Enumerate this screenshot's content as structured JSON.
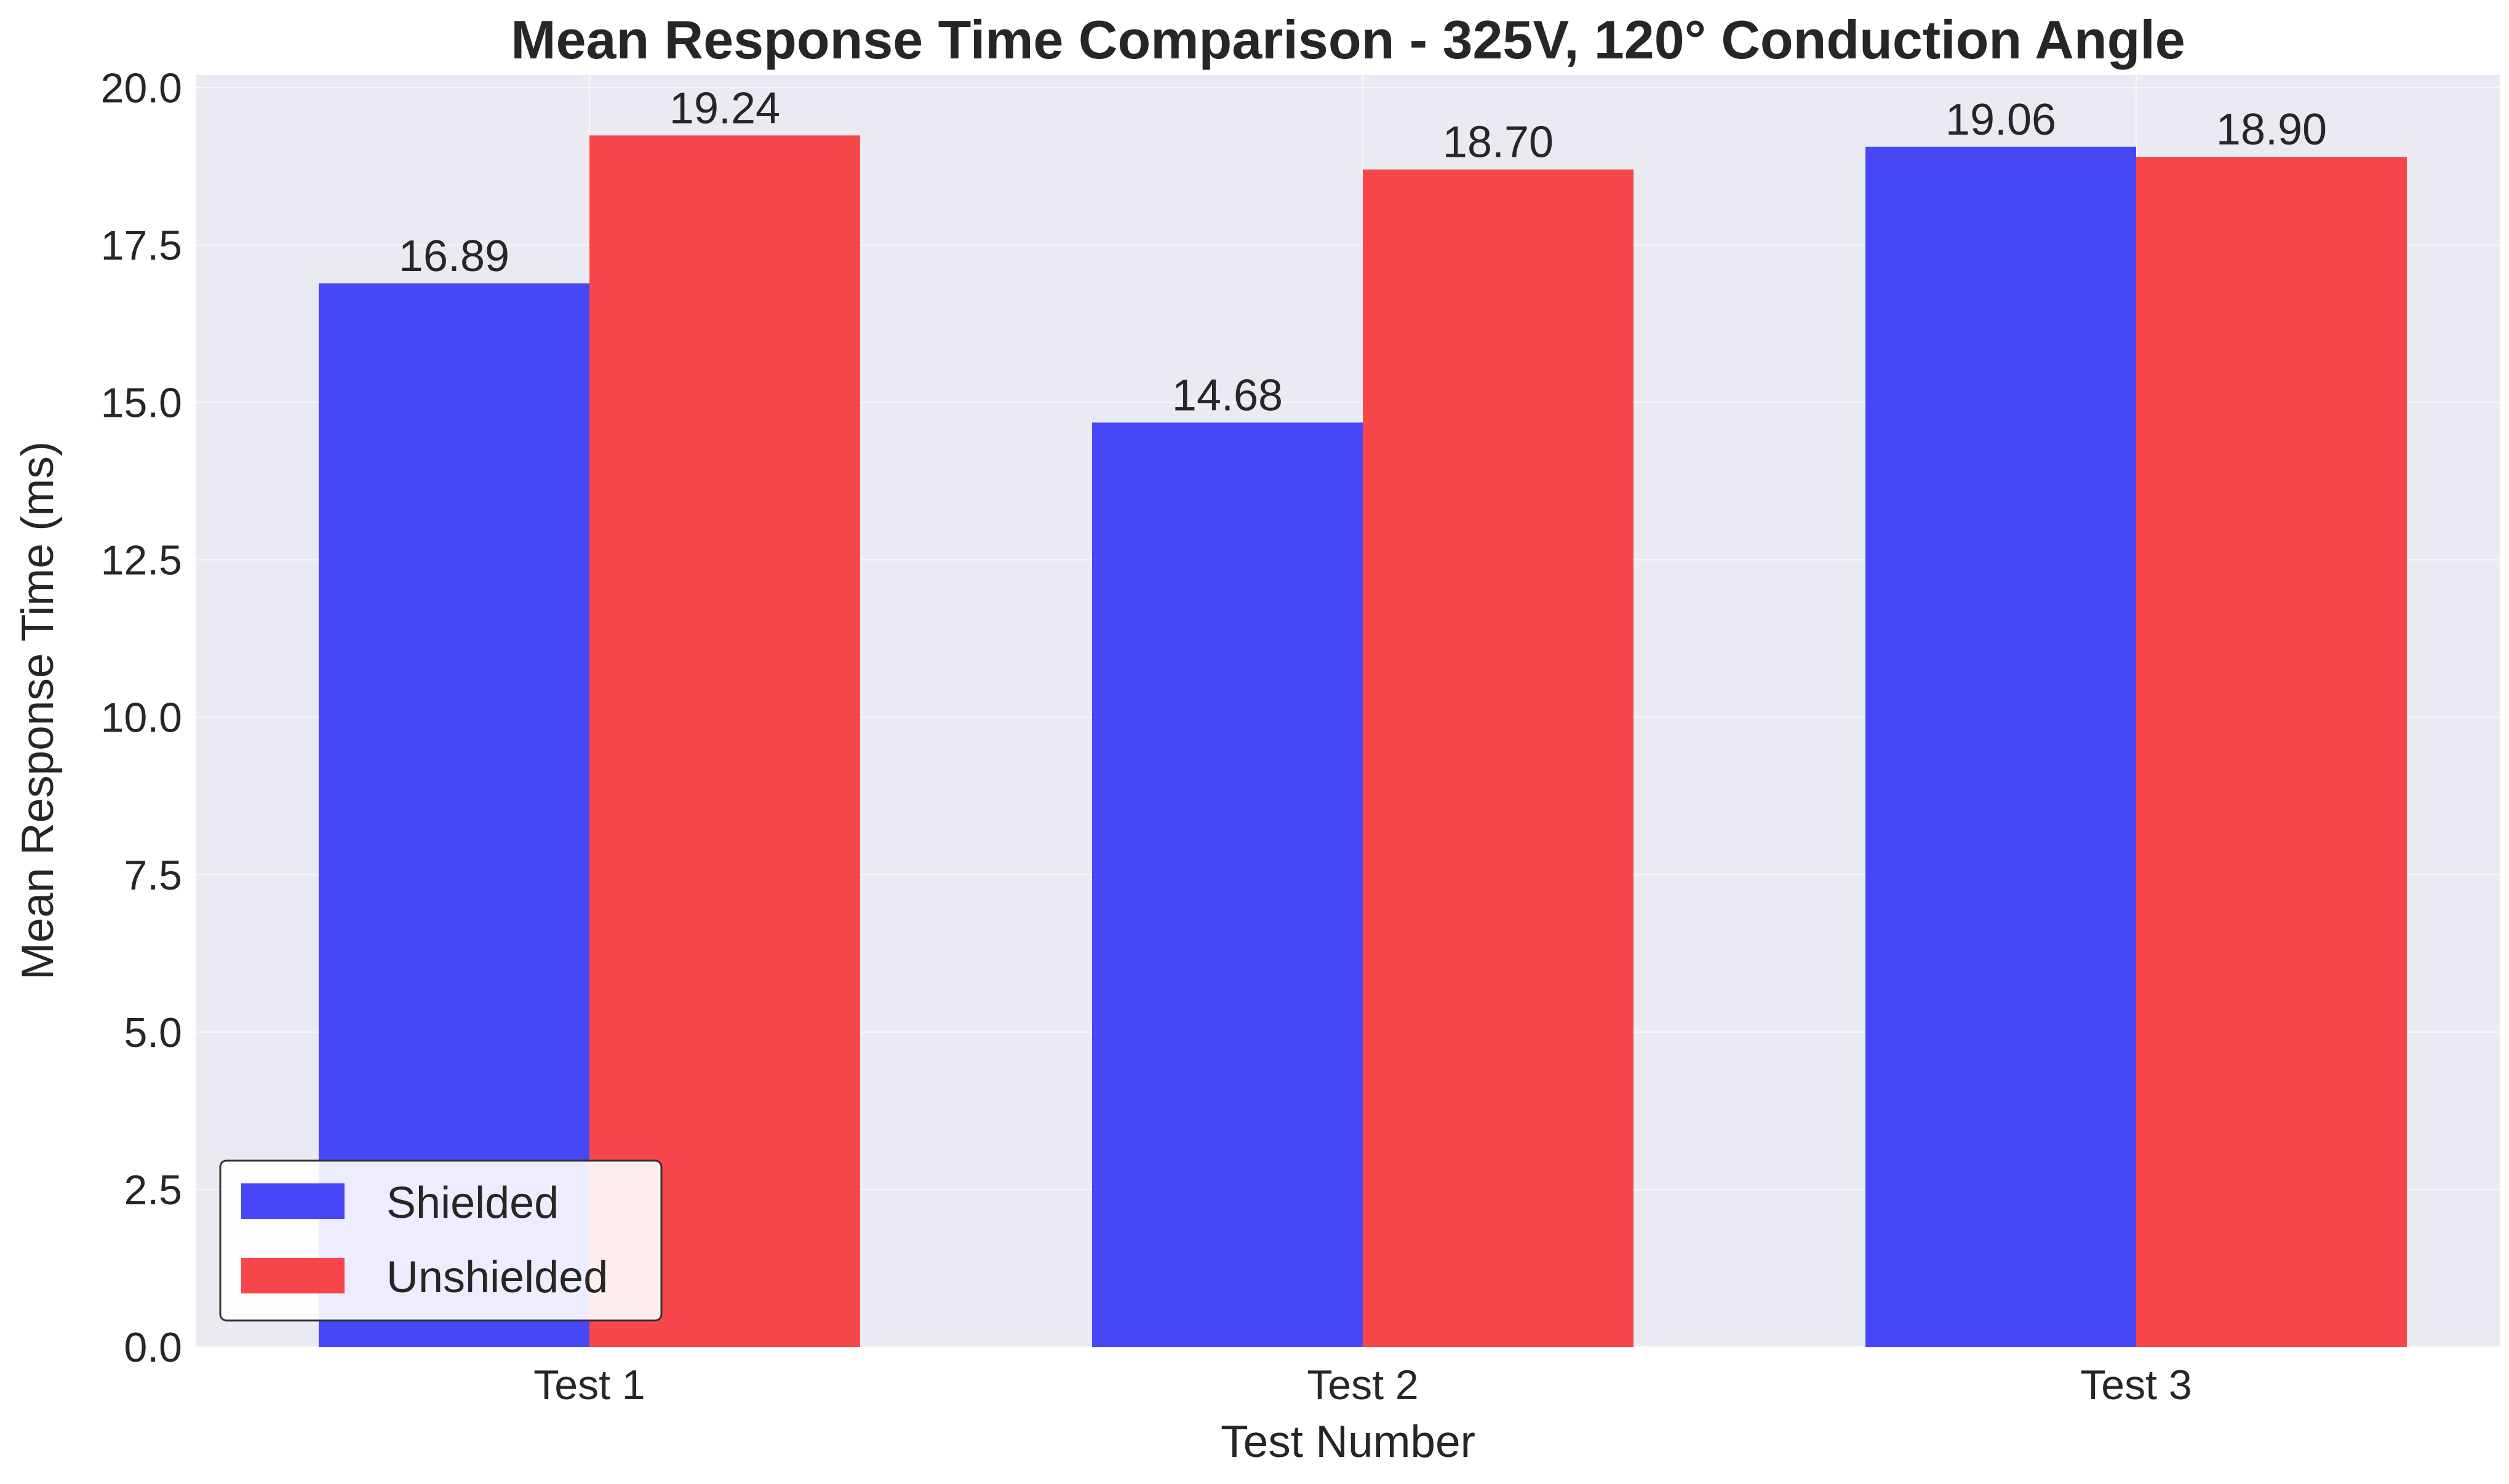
{
  "chart_data": {
    "type": "bar",
    "title": "Mean Response Time Comparison - 325V, 120° Conduction Angle",
    "xlabel": "Test Number",
    "ylabel": "Mean Response Time (ms)",
    "categories": [
      "Test 1",
      "Test 2",
      "Test 3"
    ],
    "series": [
      {
        "name": "Shielded",
        "color": "#4747f8",
        "values": [
          16.89,
          14.68,
          19.06
        ],
        "labels": [
          "16.89",
          "14.68",
          "19.06"
        ]
      },
      {
        "name": "Unshielded",
        "color": "#f8474a",
        "values": [
          19.24,
          18.7,
          18.9
        ],
        "labels": [
          "19.24",
          "18.70",
          "18.90"
        ]
      }
    ],
    "ylim": [
      0,
      20.2
    ],
    "yticks": [
      0,
      2.5,
      5,
      7.5,
      10,
      12.5,
      15,
      17.5,
      20
    ],
    "ytick_labels": [
      "0.0",
      "2.5",
      "5.0",
      "7.5",
      "10.0",
      "12.5",
      "15.0",
      "17.5",
      "20.0"
    ],
    "grid": true,
    "background": "#eaeaf2",
    "legend_position": "bottom-left"
  }
}
